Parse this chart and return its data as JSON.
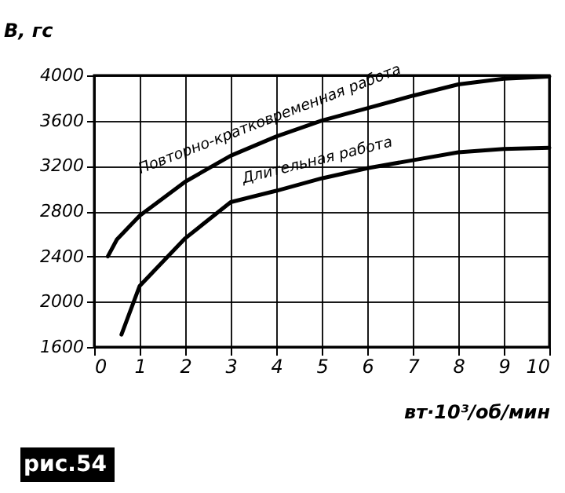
{
  "chart_data": {
    "type": "line",
    "ylabel": "В, гс",
    "xlabel": "вт·10³/об/мин",
    "xlim": [
      0,
      10
    ],
    "xticks": [
      0,
      1,
      2,
      3,
      4,
      5,
      6,
      7,
      8,
      9,
      10
    ],
    "ylim": [
      1600,
      4000
    ],
    "yticks": [
      1600,
      2000,
      2400,
      2800,
      3200,
      3600,
      4000
    ],
    "grid": true,
    "marker": "none",
    "line_style": "solid",
    "series": [
      {
        "name": "Повторно-кратковременная работа",
        "color": "#000000",
        "x": [
          0.3,
          0.5,
          1,
          2,
          3,
          4,
          5,
          6,
          7,
          8,
          9,
          10
        ],
        "values": [
          2400,
          2550,
          2760,
          3060,
          3290,
          3460,
          3600,
          3710,
          3820,
          3920,
          3970,
          3990
        ]
      },
      {
        "name": "Длительная работа",
        "color": "#000000",
        "x": [
          0.6,
          1,
          2,
          3,
          4,
          5,
          6,
          7,
          8,
          9,
          10
        ],
        "values": [
          1710,
          2140,
          2560,
          2880,
          2980,
          3090,
          3180,
          3250,
          3320,
          3350,
          3360
        ]
      }
    ],
    "annotations": [
      "рис.54"
    ]
  }
}
